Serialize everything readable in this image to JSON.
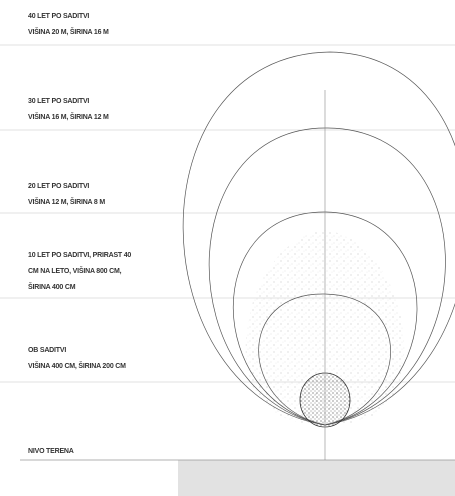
{
  "stages": [
    {
      "lines": [
        "40 LET PO SADITVI",
        "VIŠINA 20 M, ŠIRINA 16 M"
      ]
    },
    {
      "lines": [
        "30 LET PO SADITVI",
        "VIŠINA 16 M, ŠIRINA 12 M"
      ]
    },
    {
      "lines": [
        "20 LET PO SADITVI",
        "VIŠINA 12 M, ŠIRINA 8 M"
      ]
    },
    {
      "lines": [
        "10 LET PO SADITVI, PRIRAST 40",
        "CM NA LETO, VIŠINA 800 CM,",
        "ŠIRINA 400 CM"
      ]
    },
    {
      "lines": [
        "OB SADITVI",
        "VIŠINA 400 CM, ŠIRINA 200 CM"
      ]
    },
    {
      "lines": [
        "NIVO TERENA"
      ]
    }
  ]
}
